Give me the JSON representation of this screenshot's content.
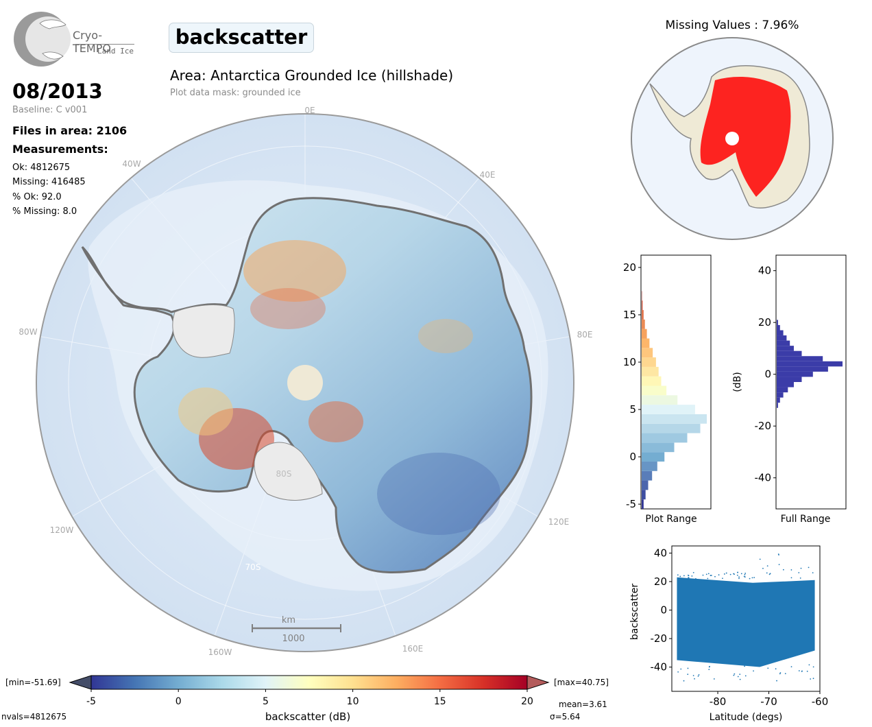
{
  "logo": {
    "name": "Cryo-TEMPO",
    "subtitle": "Land Ice"
  },
  "parameter": "backscatter",
  "date": "08/2013",
  "baseline": "Baseline: C v001",
  "files_in_area": "Files in area: 2106",
  "measurements": {
    "heading": "Measurements:",
    "ok": "Ok: 4812675",
    "missing": "Missing: 416485",
    "pct_ok": "% Ok: 92.0",
    "pct_missing": "% Missing: 8.0"
  },
  "area_title": "Area: Antarctica Grounded Ice (hillshade)",
  "mask_note": "Plot data mask: grounded ice",
  "map": {
    "longitude_labels": [
      "0E",
      "40E",
      "80E",
      "120E",
      "160E",
      "160W",
      "120W",
      "80W",
      "40W"
    ],
    "latitude_labels": [
      "80S",
      "70S"
    ],
    "scale_bar": {
      "unit": "km",
      "length": "1000"
    },
    "colors": {
      "ocean": "#dbe8f5",
      "coast": "#6e6e6e",
      "ice_shelf": "#e9e9e9",
      "pole_hole": "#efe9d6"
    }
  },
  "missing_panel": {
    "title": "Missing Values : 7.96%",
    "missing_color": "#ff0000",
    "ok_color": "#efead6"
  },
  "colorbar": {
    "label": "backscatter (dB)",
    "ticks": [
      "-5",
      "0",
      "5",
      "10",
      "15",
      "20"
    ],
    "min_label": "[min=-51.69]",
    "max_label": "[max=40.75]",
    "nvals": "nvals=4812675",
    "mean": "mean=3.61",
    "sigma": "σ=5.64",
    "colormap": "RdYlBu_r"
  },
  "chart_data": [
    {
      "type": "bar",
      "orientation": "horizontal",
      "xlabel": "Plot Range",
      "ylabel": "",
      "ylim": [
        -5.5,
        21.3
      ],
      "yticks": [
        "20",
        "15",
        "10",
        "5",
        "0",
        "-5"
      ],
      "bins_center_db": [
        -5,
        -4,
        -3,
        -2,
        -1,
        0,
        1,
        2,
        3,
        4,
        5,
        6,
        7,
        8,
        9,
        10,
        11,
        12,
        13,
        14,
        15,
        16,
        17
      ],
      "relative_counts": [
        0.03,
        0.06,
        0.1,
        0.16,
        0.24,
        0.35,
        0.5,
        0.7,
        0.9,
        1.0,
        0.82,
        0.55,
        0.38,
        0.3,
        0.26,
        0.22,
        0.17,
        0.12,
        0.08,
        0.05,
        0.03,
        0.015,
        0.005
      ]
    },
    {
      "type": "bar",
      "orientation": "horizontal",
      "xlabel": "Full Range",
      "ylabel": "(dB)",
      "ylim": [
        -52,
        46
      ],
      "yticks": [
        "40",
        "20",
        "0",
        "-20",
        "-40"
      ],
      "color": "#3b3ca8",
      "bins_center_db": [
        -12,
        -10,
        -8,
        -6,
        -4,
        -2,
        0,
        2,
        4,
        6,
        8,
        10,
        12,
        14,
        16,
        18,
        20
      ],
      "relative_counts": [
        0.02,
        0.05,
        0.1,
        0.17,
        0.26,
        0.38,
        0.55,
        0.78,
        1.0,
        0.7,
        0.38,
        0.26,
        0.2,
        0.15,
        0.1,
        0.05,
        0.02
      ]
    },
    {
      "type": "scatter",
      "xlabel": "Latitude (degs)",
      "ylabel": "backscatter",
      "xlim": [
        -89,
        -60
      ],
      "ylim": [
        -57,
        45
      ],
      "xticks": [
        "-80",
        "-70",
        "-60"
      ],
      "yticks": [
        "40",
        "20",
        "0",
        "-20",
        "-40"
      ],
      "color": "#1f77b4",
      "point_cloud": {
        "x_range": [
          -88,
          -61
        ],
        "y_low": -38,
        "y_high": 22,
        "outlier_y_max": 40
      }
    }
  ]
}
